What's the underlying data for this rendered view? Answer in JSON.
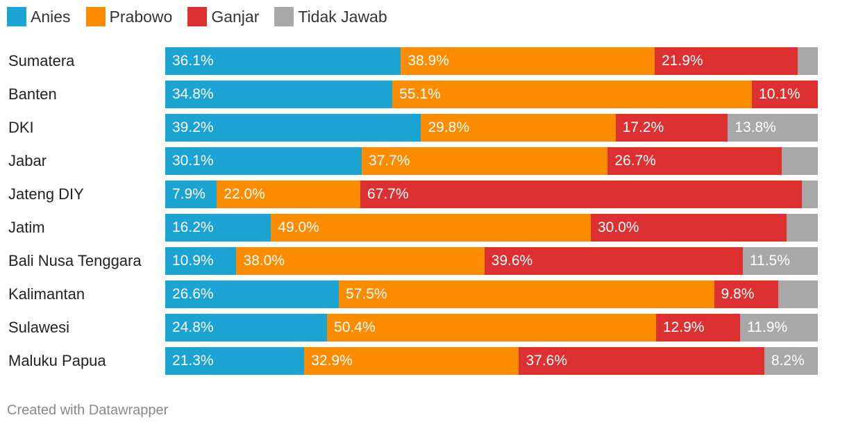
{
  "colors": {
    "anies": "#1ba3d1",
    "prabowo": "#fb8c00",
    "ganjar": "#dd3030",
    "tidak": "#a8a8a8"
  },
  "footer": "Created with Datawrapper",
  "chart_data": {
    "type": "bar",
    "orientation": "horizontal",
    "stacked": true,
    "legend_position": "top-left",
    "series": [
      {
        "name": "Anies",
        "color_key": "anies",
        "values": [
          36.1,
          34.8,
          39.2,
          30.1,
          7.9,
          16.2,
          10.9,
          26.6,
          24.8,
          21.3
        ]
      },
      {
        "name": "Prabowo",
        "color_key": "prabowo",
        "values": [
          38.9,
          55.1,
          29.8,
          37.7,
          22.0,
          49.0,
          38.0,
          57.5,
          50.4,
          32.9
        ]
      },
      {
        "name": "Ganjar",
        "color_key": "ganjar",
        "values": [
          21.9,
          10.1,
          17.2,
          26.7,
          67.7,
          30.0,
          39.6,
          9.8,
          12.9,
          37.6
        ]
      },
      {
        "name": "Tidak Jawab",
        "color_key": "tidak",
        "values": [
          3.1,
          0,
          13.8,
          5.5,
          2.4,
          4.8,
          11.5,
          6.1,
          11.9,
          8.2
        ]
      }
    ],
    "categories": [
      "Sumatera",
      "Banten",
      "DKI",
      "Jabar",
      "Jateng DIY",
      "Jatim",
      "Bali Nusa Tenggara",
      "Kalimantan",
      "Sulawesi",
      "Maluku Papua"
    ],
    "labels": [
      [
        "36.1%",
        "38.9%",
        "21.9%",
        ""
      ],
      [
        "34.8%",
        "55.1%",
        "10.1%",
        ""
      ],
      [
        "39.2%",
        "29.8%",
        "17.2%",
        "13.8%"
      ],
      [
        "30.1%",
        "37.7%",
        "26.7%",
        ""
      ],
      [
        "7.9%",
        "22.0%",
        "67.7%",
        ""
      ],
      [
        "16.2%",
        "49.0%",
        "30.0%",
        ""
      ],
      [
        "10.9%",
        "38.0%",
        "39.6%",
        "11.5%"
      ],
      [
        "26.6%",
        "57.5%",
        "9.8%",
        ""
      ],
      [
        "24.8%",
        "50.4%",
        "12.9%",
        "11.9%"
      ],
      [
        "21.3%",
        "32.9%",
        "37.6%",
        "8.2%"
      ]
    ]
  }
}
